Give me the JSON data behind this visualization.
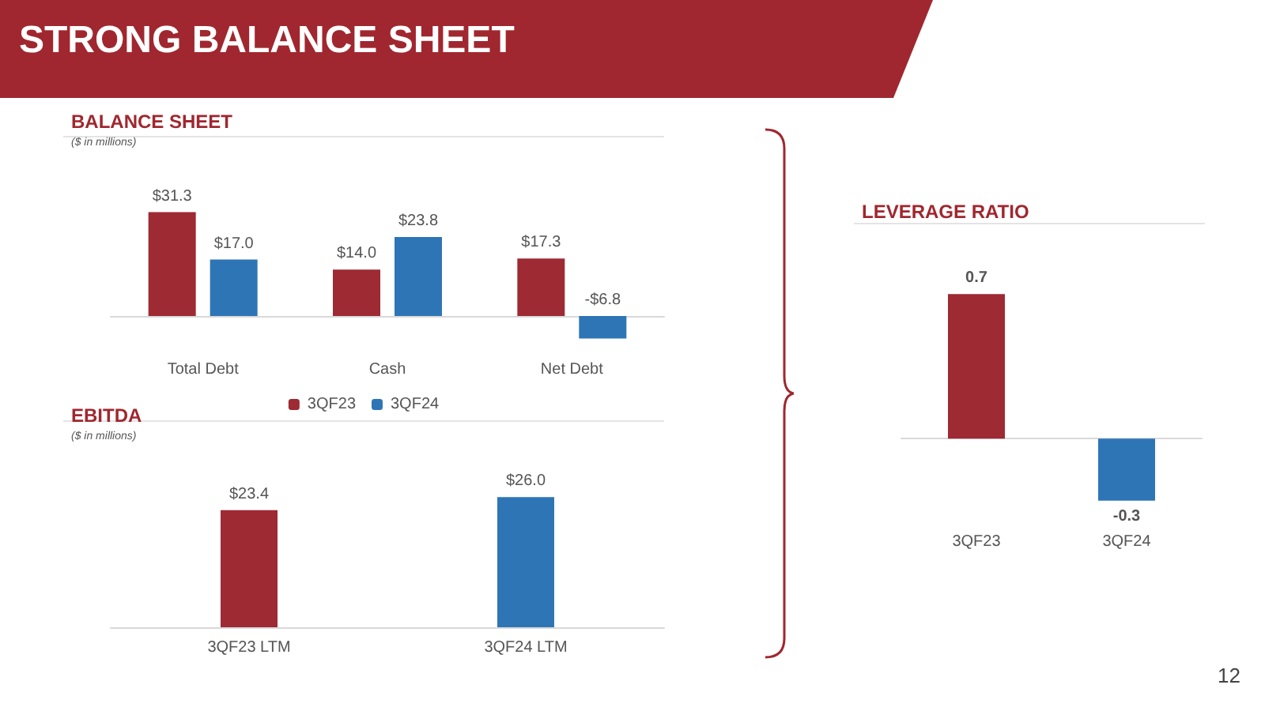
{
  "chart_data": [
    {
      "type": "bar",
      "title": "BALANCE SHEET",
      "subtitle": "($ in millions)",
      "annotations": [
        "STRONG BALANCE SHEET"
      ],
      "categories": [
        "Total Debt",
        "Cash",
        "Net Debt"
      ],
      "series": [
        {
          "name": "3QF23",
          "color": "#9e2a33",
          "values": [
            31.3,
            14.0,
            17.3
          ],
          "value_labels": [
            "$31.3",
            "$14.0",
            "$17.3"
          ]
        },
        {
          "name": "3QF24",
          "color": "#2e75b6",
          "values": [
            17.0,
            23.8,
            -6.8
          ],
          "value_labels": [
            "$17.0",
            "$23.8",
            "-$6.8"
          ]
        }
      ],
      "legend": "bottom"
    },
    {
      "type": "bar",
      "title": "EBITDA",
      "subtitle": "($ in millions)",
      "categories": [
        "3QF23 LTM",
        "3QF24 LTM"
      ],
      "values": [
        23.4,
        26.0
      ],
      "colors": [
        "#9e2a33",
        "#2e75b6"
      ],
      "value_labels": [
        "$23.4",
        "$26.0"
      ]
    },
    {
      "type": "bar",
      "title": "LEVERAGE RATIO",
      "annotations": [
        "12"
      ],
      "categories": [
        "3QF23",
        "3QF24"
      ],
      "values": [
        0.7,
        -0.3
      ],
      "colors": [
        "#9e2a33",
        "#2e75b6"
      ],
      "data_labels": true
    }
  ]
}
